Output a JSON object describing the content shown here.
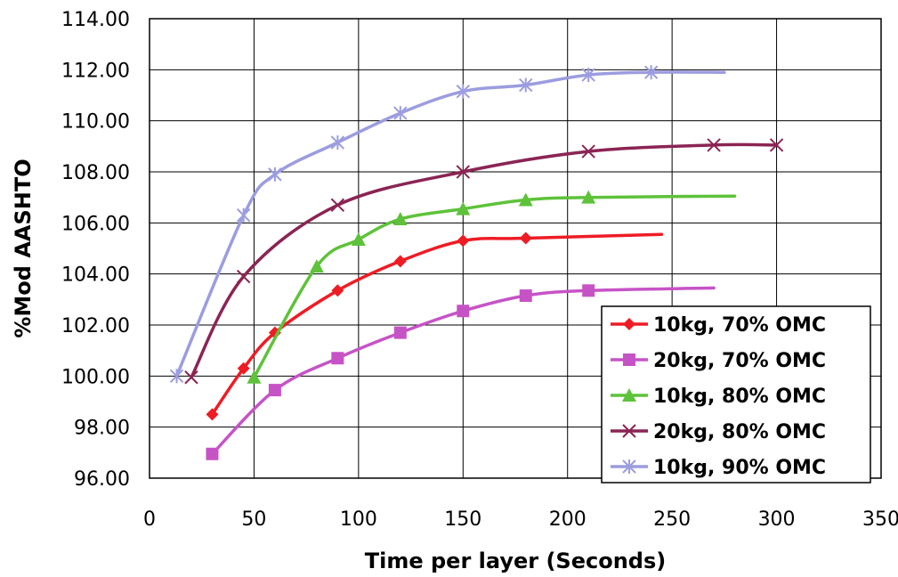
{
  "chart_data": {
    "type": "line",
    "xlabel": "Time per layer (Seconds)",
    "ylabel": "%Mod AASHTO",
    "xlim": [
      0,
      350
    ],
    "ylim": [
      96,
      114
    ],
    "x_ticks": [
      "0",
      "50",
      "100",
      "150",
      "200",
      "250",
      "300",
      "350"
    ],
    "y_ticks": [
      "96.00",
      "98.00",
      "100.00",
      "102.00",
      "104.00",
      "106.00",
      "108.00",
      "110.00",
      "112.00",
      "114.00"
    ],
    "grid": true,
    "legend_position": "bottom-right",
    "series": [
      {
        "name": "10kg, 70% OMC",
        "color": "#ee1c25",
        "marker": "diamond",
        "x": [
          30,
          45,
          60,
          90,
          120,
          150,
          180
        ],
        "y": [
          98.5,
          100.3,
          101.7,
          103.35,
          104.5,
          105.3,
          105.4
        ],
        "curve_end": [
          245,
          105.55
        ]
      },
      {
        "name": "20kg, 70% OMC",
        "color": "#c653c6",
        "marker": "square",
        "x": [
          30,
          60,
          90,
          120,
          150,
          180,
          210
        ],
        "y": [
          96.95,
          99.45,
          100.7,
          101.7,
          102.55,
          103.15,
          103.35
        ],
        "curve_end": [
          270,
          103.45
        ]
      },
      {
        "name": "10kg, 80% OMC",
        "color": "#5ec23a",
        "marker": "triangle",
        "x": [
          50,
          80,
          100,
          120,
          150,
          180,
          210
        ],
        "y": [
          99.95,
          104.3,
          105.35,
          106.15,
          106.55,
          106.9,
          107.0
        ],
        "curve_end": [
          280,
          107.05
        ]
      },
      {
        "name": "20kg, 80% OMC",
        "color": "#8b2454",
        "marker": "x",
        "x": [
          20,
          45,
          90,
          150,
          210,
          270,
          300
        ],
        "y": [
          99.95,
          103.9,
          106.7,
          108.0,
          108.8,
          109.05,
          109.05
        ],
        "curve_end": null
      },
      {
        "name": "10kg, 90% OMC",
        "color": "#9c9ce0",
        "marker": "asterisk",
        "x": [
          13,
          45,
          60,
          90,
          120,
          150,
          180,
          210,
          240
        ],
        "y": [
          100.0,
          106.3,
          107.9,
          109.15,
          110.3,
          111.15,
          111.4,
          111.8,
          111.9
        ],
        "curve_end": [
          275,
          111.9
        ]
      }
    ]
  }
}
